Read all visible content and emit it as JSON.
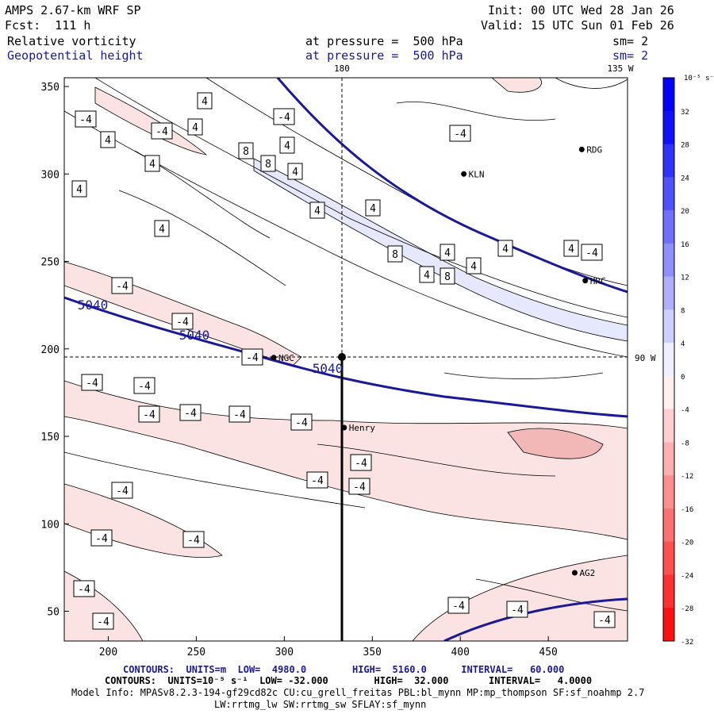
{
  "header": {
    "model": "AMPS 2.67-km WRF SP",
    "forecast": "Fcst:  111 h",
    "init": "Init: 00 UTC Wed 28 Jan 26",
    "valid": "Valid: 15 UTC Sun 01 Feb 26",
    "field1": "Relative vorticity",
    "field2": "Geopotential height",
    "pressure1": "at pressure =  500 hPa",
    "pressure2": "at pressure =  500 hPa",
    "sm1": "sm= 2",
    "sm2": "sm= 2"
  },
  "footer": {
    "contours_height": "CONTOURS:  UNITS=m  LOW=  4980.0        HIGH=  5160.0      INTERVAL=   60.000",
    "contours_vort": "CONTOURS:  UNITS=10⁻⁵ s⁻¹  LOW= -32.000        HIGH=  32.000       INTERVAL=   4.0000",
    "model_info": "Model Info: MPASv8.2.3-194-gf29cd82c CU:cu_grell_freitas PBL:bl_mynn MP:mp_thompson SF:sf_noahmp 2.7",
    "model_info2": "LW:rrtmg_lw SW:rrtmg_sw SFLAY:sf_mynn"
  },
  "colors": {
    "frame": "#000000",
    "height_contour": "#1a1a99",
    "pos_fill": "#e6e8ff",
    "neg_fill": "#fbe3e3",
    "neg_fill2": "#f2b8b8"
  },
  "chart_data": {
    "type": "heatmap",
    "xlim": [
      175,
      495
    ],
    "ylim": [
      33,
      355
    ],
    "x_ticks": [
      "200",
      "250",
      "300",
      "350",
      "400",
      "450"
    ],
    "y_ticks": [
      "350",
      "300",
      "250",
      "200",
      "150",
      "100",
      "50"
    ],
    "top_labels": [
      "180",
      "135 W"
    ],
    "right_label": "90 W",
    "height_contour_labels": [
      "5040",
      "5040",
      "5040"
    ],
    "vorticity_labels": [
      "-4",
      "4",
      "4",
      "-4",
      "4",
      "-4",
      "4",
      "4",
      "4",
      "8",
      "8",
      "4",
      "4",
      "4",
      "4",
      "-4",
      "8",
      "4",
      "4",
      "8",
      "4",
      "4",
      "4",
      "-4",
      "-4",
      "-4",
      "-4",
      "-4",
      "-4",
      "-4",
      "-4",
      "-4",
      "-4",
      "-4",
      "-4",
      "-4",
      "-4",
      "-4",
      "-4",
      "-4",
      "-4",
      "-4",
      "-4",
      "-4"
    ],
    "stations": [
      {
        "name": "KLN",
        "x": 402,
        "y": 300
      },
      {
        "name": "RDG",
        "x": 469,
        "y": 314
      },
      {
        "name": "HRC",
        "x": 471,
        "y": 239
      },
      {
        "name": "NGC",
        "x": 294,
        "y": 195
      },
      {
        "name": "Henry",
        "x": 334,
        "y": 155
      },
      {
        "name": "AG2",
        "x": 465,
        "y": 72
      }
    ],
    "colorbar": {
      "units": "10⁻⁵ s⁻¹",
      "levels": [
        "32",
        "28",
        "24",
        "20",
        "16",
        "12",
        "8",
        "4",
        "0",
        "-4",
        "-8",
        "-12",
        "-16",
        "-20",
        "-24",
        "-28",
        "-32"
      ]
    }
  }
}
